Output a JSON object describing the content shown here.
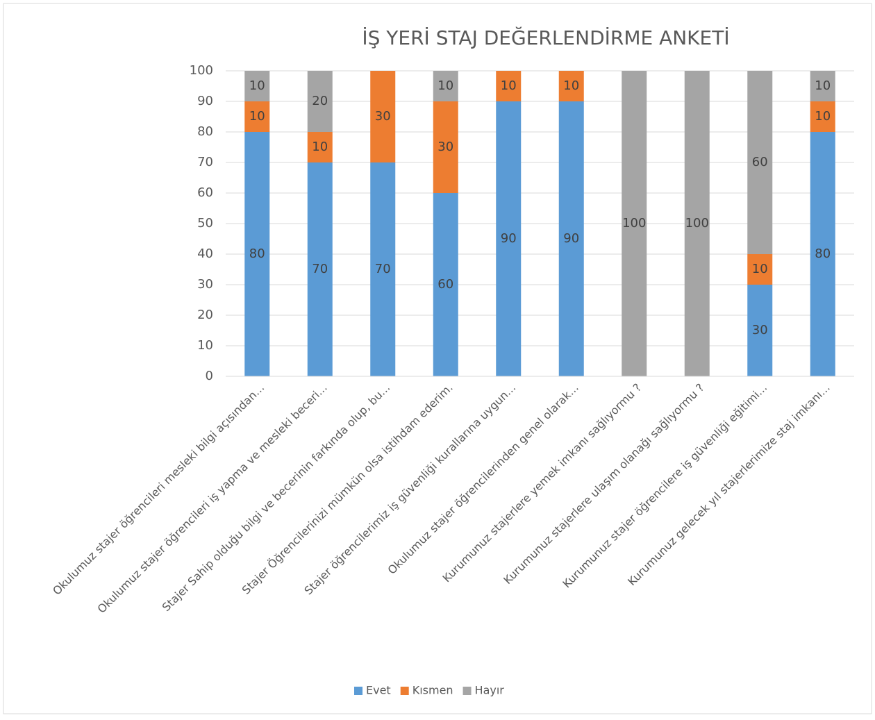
{
  "chart_data": {
    "type": "stacked_bar",
    "title": "İŞ YERİ STAJ DEĞERLENDİRME ANKETİ",
    "categories": [
      "Okulumuz stajer öğrencileri mesleki bilgi açısından...",
      "Okulumuz stajer öğrencileri iş yapma ve mesleki beceri...",
      "Stajer Sahip olduğu bilgi ve becerinin farkında olup, bu...",
      "Stajer Öğrencilerinizi mümkün olsa istihdam ederim.",
      "Stajer öğrencilerimiz iş güvenliği kurallarına uygun...",
      "Okulumuz stajer öğrencilerinden genel olarak...",
      "Kurumunuz stajerlere yemek imkanı sağlıyormu ?",
      "Kurumunuz stajerlere ulaşım olanağı sağlıyormu ?",
      "Kurumunuz stajer öğrencilere iş güvenliği eğitimi...",
      "Kurumunuz gelecek yıl stajerlerimize staj imkanı..."
    ],
    "series": [
      {
        "name": "Evet",
        "color": "#5b9bd5",
        "values": [
          80,
          70,
          70,
          60,
          90,
          90,
          null,
          null,
          30,
          80
        ]
      },
      {
        "name": "Kısmen",
        "color": "#ed7d31",
        "values": [
          10,
          10,
          30,
          30,
          10,
          10,
          null,
          null,
          10,
          10
        ]
      },
      {
        "name": "Hayır",
        "color": "#a5a5a5",
        "values": [
          10,
          20,
          null,
          10,
          null,
          null,
          100,
          100,
          60,
          10
        ]
      }
    ],
    "ylim": [
      0,
      100
    ],
    "yticks": [
      0,
      10,
      20,
      30,
      40,
      50,
      60,
      70,
      80,
      90,
      100
    ],
    "grid": true,
    "legend": "bottom"
  }
}
